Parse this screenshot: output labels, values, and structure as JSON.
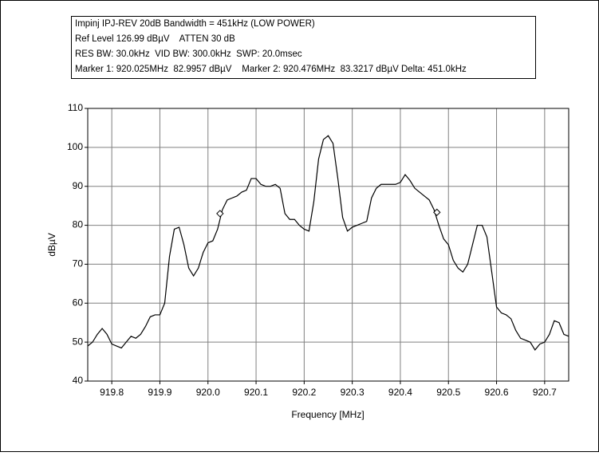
{
  "chart_data": {
    "type": "line",
    "info_lines": [
      "Impinj IPJ-REV 20dB Bandwidth = 451kHz (LOW POWER)",
      "Ref Level 126.99 dBµV    ATTEN 30 dB",
      "RES BW: 30.0kHz  VID BW: 300.0kHz  SWP: 20.0msec",
      "Marker 1: 920.025MHz  82.9957 dBµV    Marker 2: 920.476MHz  83.3217 dBµV Delta: 451.0kHz"
    ],
    "x_label": "Frequency [MHz]",
    "y_label": "dBµV",
    "x": [
      919.75,
      919.76,
      919.77,
      919.78,
      919.79,
      919.8,
      919.81,
      919.82,
      919.83,
      919.84,
      919.85,
      919.86,
      919.87,
      919.88,
      919.89,
      919.9,
      919.91,
      919.92,
      919.93,
      919.94,
      919.95,
      919.96,
      919.97,
      919.98,
      919.99,
      920.0,
      920.01,
      920.02,
      920.03,
      920.04,
      920.05,
      920.06,
      920.07,
      920.08,
      920.09,
      920.1,
      920.11,
      920.12,
      920.13,
      920.14,
      920.15,
      920.16,
      920.17,
      920.18,
      920.19,
      920.2,
      920.21,
      920.22,
      920.23,
      920.24,
      920.25,
      920.26,
      920.27,
      920.28,
      920.29,
      920.3,
      920.31,
      920.32,
      920.33,
      920.34,
      920.35,
      920.36,
      920.37,
      920.38,
      920.39,
      920.4,
      920.41,
      920.42,
      920.43,
      920.44,
      920.45,
      920.46,
      920.47,
      920.48,
      920.49,
      920.5,
      920.51,
      920.52,
      920.53,
      920.54,
      920.55,
      920.56,
      920.57,
      920.58,
      920.59,
      920.6,
      920.61,
      920.62,
      920.63,
      920.64,
      920.65,
      920.66,
      920.67,
      920.68,
      920.69,
      920.7,
      920.71,
      920.72,
      920.73,
      920.74,
      920.75
    ],
    "series": [
      {
        "color": "#000000",
        "values": [
          49,
          50,
          52,
          53.5,
          52,
          49.5,
          49,
          48.5,
          50,
          51.5,
          51,
          52,
          54,
          56.5,
          57,
          57,
          60,
          72,
          79,
          79.5,
          75,
          69,
          67,
          69,
          73,
          75.5,
          76,
          79,
          84,
          86.5,
          87,
          87.5,
          88.5,
          89,
          92,
          92,
          90.5,
          90,
          90,
          90.5,
          89.5,
          83,
          81.5,
          81.5,
          80,
          79,
          78.5,
          86,
          97,
          102,
          103,
          101,
          92,
          82,
          78.5,
          79.5,
          80,
          80.5,
          81,
          87,
          89.5,
          90.5,
          90.5,
          90.5,
          90.5,
          91,
          93,
          91.5,
          89.5,
          88.5,
          87.5,
          86.5,
          84,
          80,
          76.5,
          75,
          71,
          69,
          68,
          70,
          75,
          80,
          80,
          77,
          68,
          59,
          57.5,
          57,
          56,
          53,
          51,
          50.5,
          50,
          48,
          49.5,
          50,
          52,
          55.5,
          55,
          52,
          51.5
        ]
      }
    ],
    "markers": [
      {
        "x": 920.025,
        "y": 82.9957
      },
      {
        "x": 920.476,
        "y": 83.3217
      }
    ],
    "xlim": [
      919.75,
      920.75
    ],
    "xticks": [
      919.8,
      919.9,
      {
        "value": 920,
        "label": "920.0"
      },
      920.1,
      920.2,
      920.3,
      920.4,
      920.5,
      920.6,
      920.7
    ],
    "ylim": [
      40,
      110
    ],
    "yticks": [
      40,
      50,
      60,
      70,
      80,
      90,
      100,
      110
    ],
    "grid": true
  }
}
